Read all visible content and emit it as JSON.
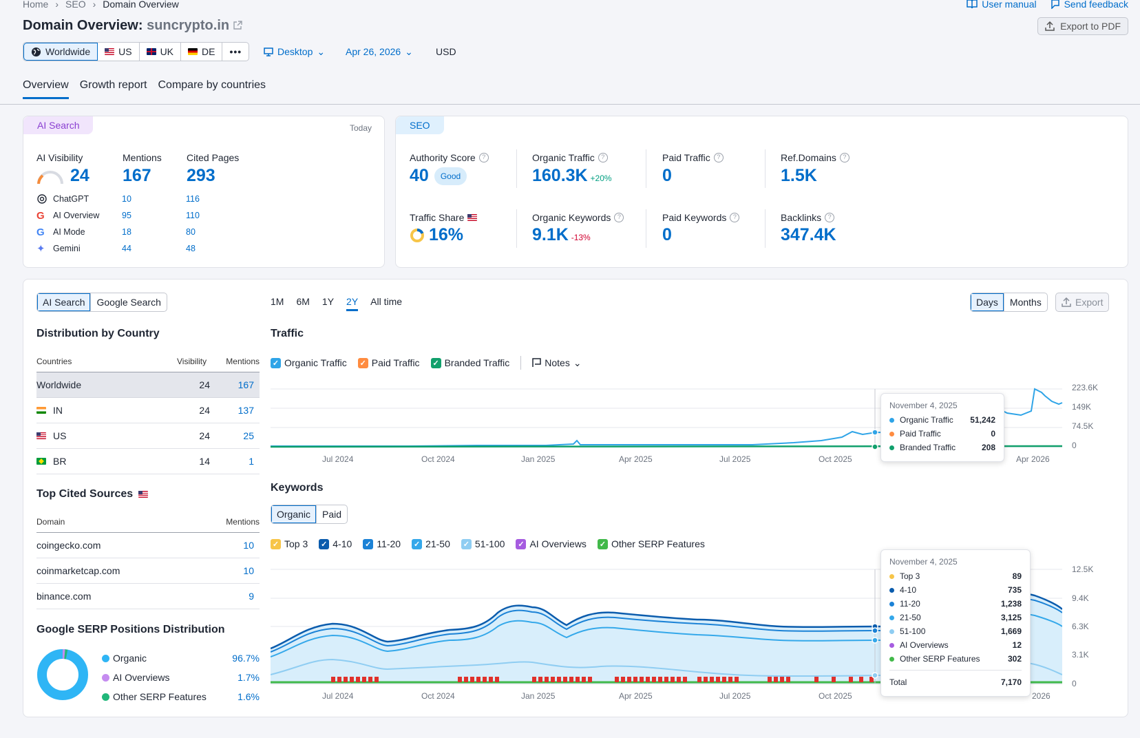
{
  "breadcrumbs": [
    "Home",
    "SEO",
    "Domain Overview"
  ],
  "top_links": {
    "manual": "User manual",
    "feedback": "Send feedback"
  },
  "title": {
    "prefix": "Domain Overview:",
    "domain": "suncrypto.in"
  },
  "export_pdf": "Export to PDF",
  "databases": [
    {
      "label": "Worldwide"
    },
    {
      "label": "US"
    },
    {
      "label": "UK"
    },
    {
      "label": "DE"
    }
  ],
  "device": "Desktop",
  "date": "Apr 26, 2026",
  "currency": "USD",
  "tabs": [
    "Overview",
    "Growth report",
    "Compare by countries"
  ],
  "ai": {
    "badge": "AI Search",
    "today": "Today",
    "headers": [
      "AI Visibility",
      "Mentions",
      "Cited Pages"
    ],
    "visibility": "24",
    "mentions": "167",
    "cited": "293",
    "engines": [
      {
        "name": "ChatGPT",
        "m": "10",
        "c": "116"
      },
      {
        "name": "AI Overview",
        "m": "95",
        "c": "110"
      },
      {
        "name": "AI Mode",
        "m": "18",
        "c": "80"
      },
      {
        "name": "Gemini",
        "m": "44",
        "c": "48"
      }
    ]
  },
  "seo": {
    "badge": "SEO",
    "authority": {
      "label": "Authority Score",
      "value": "40",
      "tag": "Good"
    },
    "organic": {
      "label": "Organic Traffic",
      "value": "160.3K",
      "delta": "+20%"
    },
    "paid": {
      "label": "Paid Traffic",
      "value": "0"
    },
    "refdomains": {
      "label": "Ref.Domains",
      "value": "1.5K"
    },
    "share": {
      "label": "Traffic Share",
      "value": "16%"
    },
    "orgkw": {
      "label": "Organic Keywords",
      "value": "9.1K",
      "delta": "-13%"
    },
    "paidkw": {
      "label": "Paid Keywords",
      "value": "0"
    },
    "backlinks": {
      "label": "Backlinks",
      "value": "347.4K"
    }
  },
  "left": {
    "toggle": [
      "AI Search",
      "Google Search"
    ],
    "dist_title": "Distribution by Country",
    "dist_headers": [
      "Countries",
      "Visibility",
      "Mentions"
    ],
    "countries": [
      {
        "name": "Worldwide",
        "vis": "24",
        "men": "167"
      },
      {
        "name": "IN",
        "vis": "24",
        "men": "137"
      },
      {
        "name": "US",
        "vis": "24",
        "men": "25"
      },
      {
        "name": "BR",
        "vis": "14",
        "men": "1"
      }
    ],
    "cited_title": "Top Cited Sources",
    "cited_headers": [
      "Domain",
      "Mentions"
    ],
    "sources": [
      {
        "d": "coingecko.com",
        "m": "10"
      },
      {
        "d": "coinmarketcap.com",
        "m": "10"
      },
      {
        "d": "binance.com",
        "m": "9"
      }
    ],
    "serp_title": "Google SERP Positions Distribution",
    "serp": [
      {
        "name": "Organic",
        "pct": "96.7%",
        "color": "#2fb5f5"
      },
      {
        "name": "AI Overviews",
        "pct": "1.7%",
        "color": "#c58cf0"
      },
      {
        "name": "Other SERP Features",
        "pct": "1.6%",
        "color": "#21b77a"
      }
    ]
  },
  "periods": [
    "1M",
    "6M",
    "1Y",
    "2Y",
    "All time"
  ],
  "granularity": [
    "Days",
    "Months"
  ],
  "export": "Export",
  "traffic": {
    "title": "Traffic",
    "legend": [
      "Organic Traffic",
      "Paid Traffic",
      "Branded Traffic"
    ],
    "notes": "Notes",
    "yticks": [
      "223.6K",
      "149K",
      "74.5K",
      "0"
    ],
    "tooltip": {
      "date": "November 4, 2025",
      "rows": [
        {
          "name": "Organic Traffic",
          "v": "51,242",
          "c": "#2fa4e7"
        },
        {
          "name": "Paid Traffic",
          "v": "0",
          "c": "#ff8c40"
        },
        {
          "name": "Branded Traffic",
          "v": "208",
          "c": "#11a06c"
        }
      ]
    }
  },
  "xticks": [
    "Jul 2024",
    "Oct 2024",
    "Jan 2025",
    "Apr 2025",
    "Jul 2025",
    "Oct 2025",
    "Apr 2026"
  ],
  "xticks2": [
    "Jul 2024",
    "Oct 2024",
    "Jan 2025",
    "Apr 2025",
    "Jul 2025",
    "Oct 2025",
    "2026"
  ],
  "keywords": {
    "title": "Keywords",
    "toggle": [
      "Organic",
      "Paid"
    ],
    "legend": [
      {
        "n": "Top 3",
        "c": "#f7c548"
      },
      {
        "n": "4-10",
        "c": "#0b5cad"
      },
      {
        "n": "11-20",
        "c": "#1b82d6"
      },
      {
        "n": "21-50",
        "c": "#34a8ea"
      },
      {
        "n": "51-100",
        "c": "#8fcdf2"
      },
      {
        "n": "AI Overviews",
        "c": "#a65ce0"
      },
      {
        "n": "Other SERP Features",
        "c": "#42b94a"
      }
    ],
    "yticks": [
      "12.5K",
      "9.4K",
      "6.3K",
      "3.1K",
      "0"
    ],
    "tooltip": {
      "date": "November 4, 2025",
      "rows": [
        {
          "name": "Top 3",
          "v": "89",
          "c": "#f7c548"
        },
        {
          "name": "4-10",
          "v": "735",
          "c": "#0b5cad"
        },
        {
          "name": "11-20",
          "v": "1,238",
          "c": "#1b82d6"
        },
        {
          "name": "21-50",
          "v": "3,125",
          "c": "#34a8ea"
        },
        {
          "name": "51-100",
          "v": "1,669",
          "c": "#8fcdf2"
        },
        {
          "name": "AI Overviews",
          "v": "12",
          "c": "#a65ce0"
        },
        {
          "name": "Other SERP Features",
          "v": "302",
          "c": "#42b94a"
        }
      ],
      "total_label": "Total",
      "total": "7,170"
    }
  }
}
